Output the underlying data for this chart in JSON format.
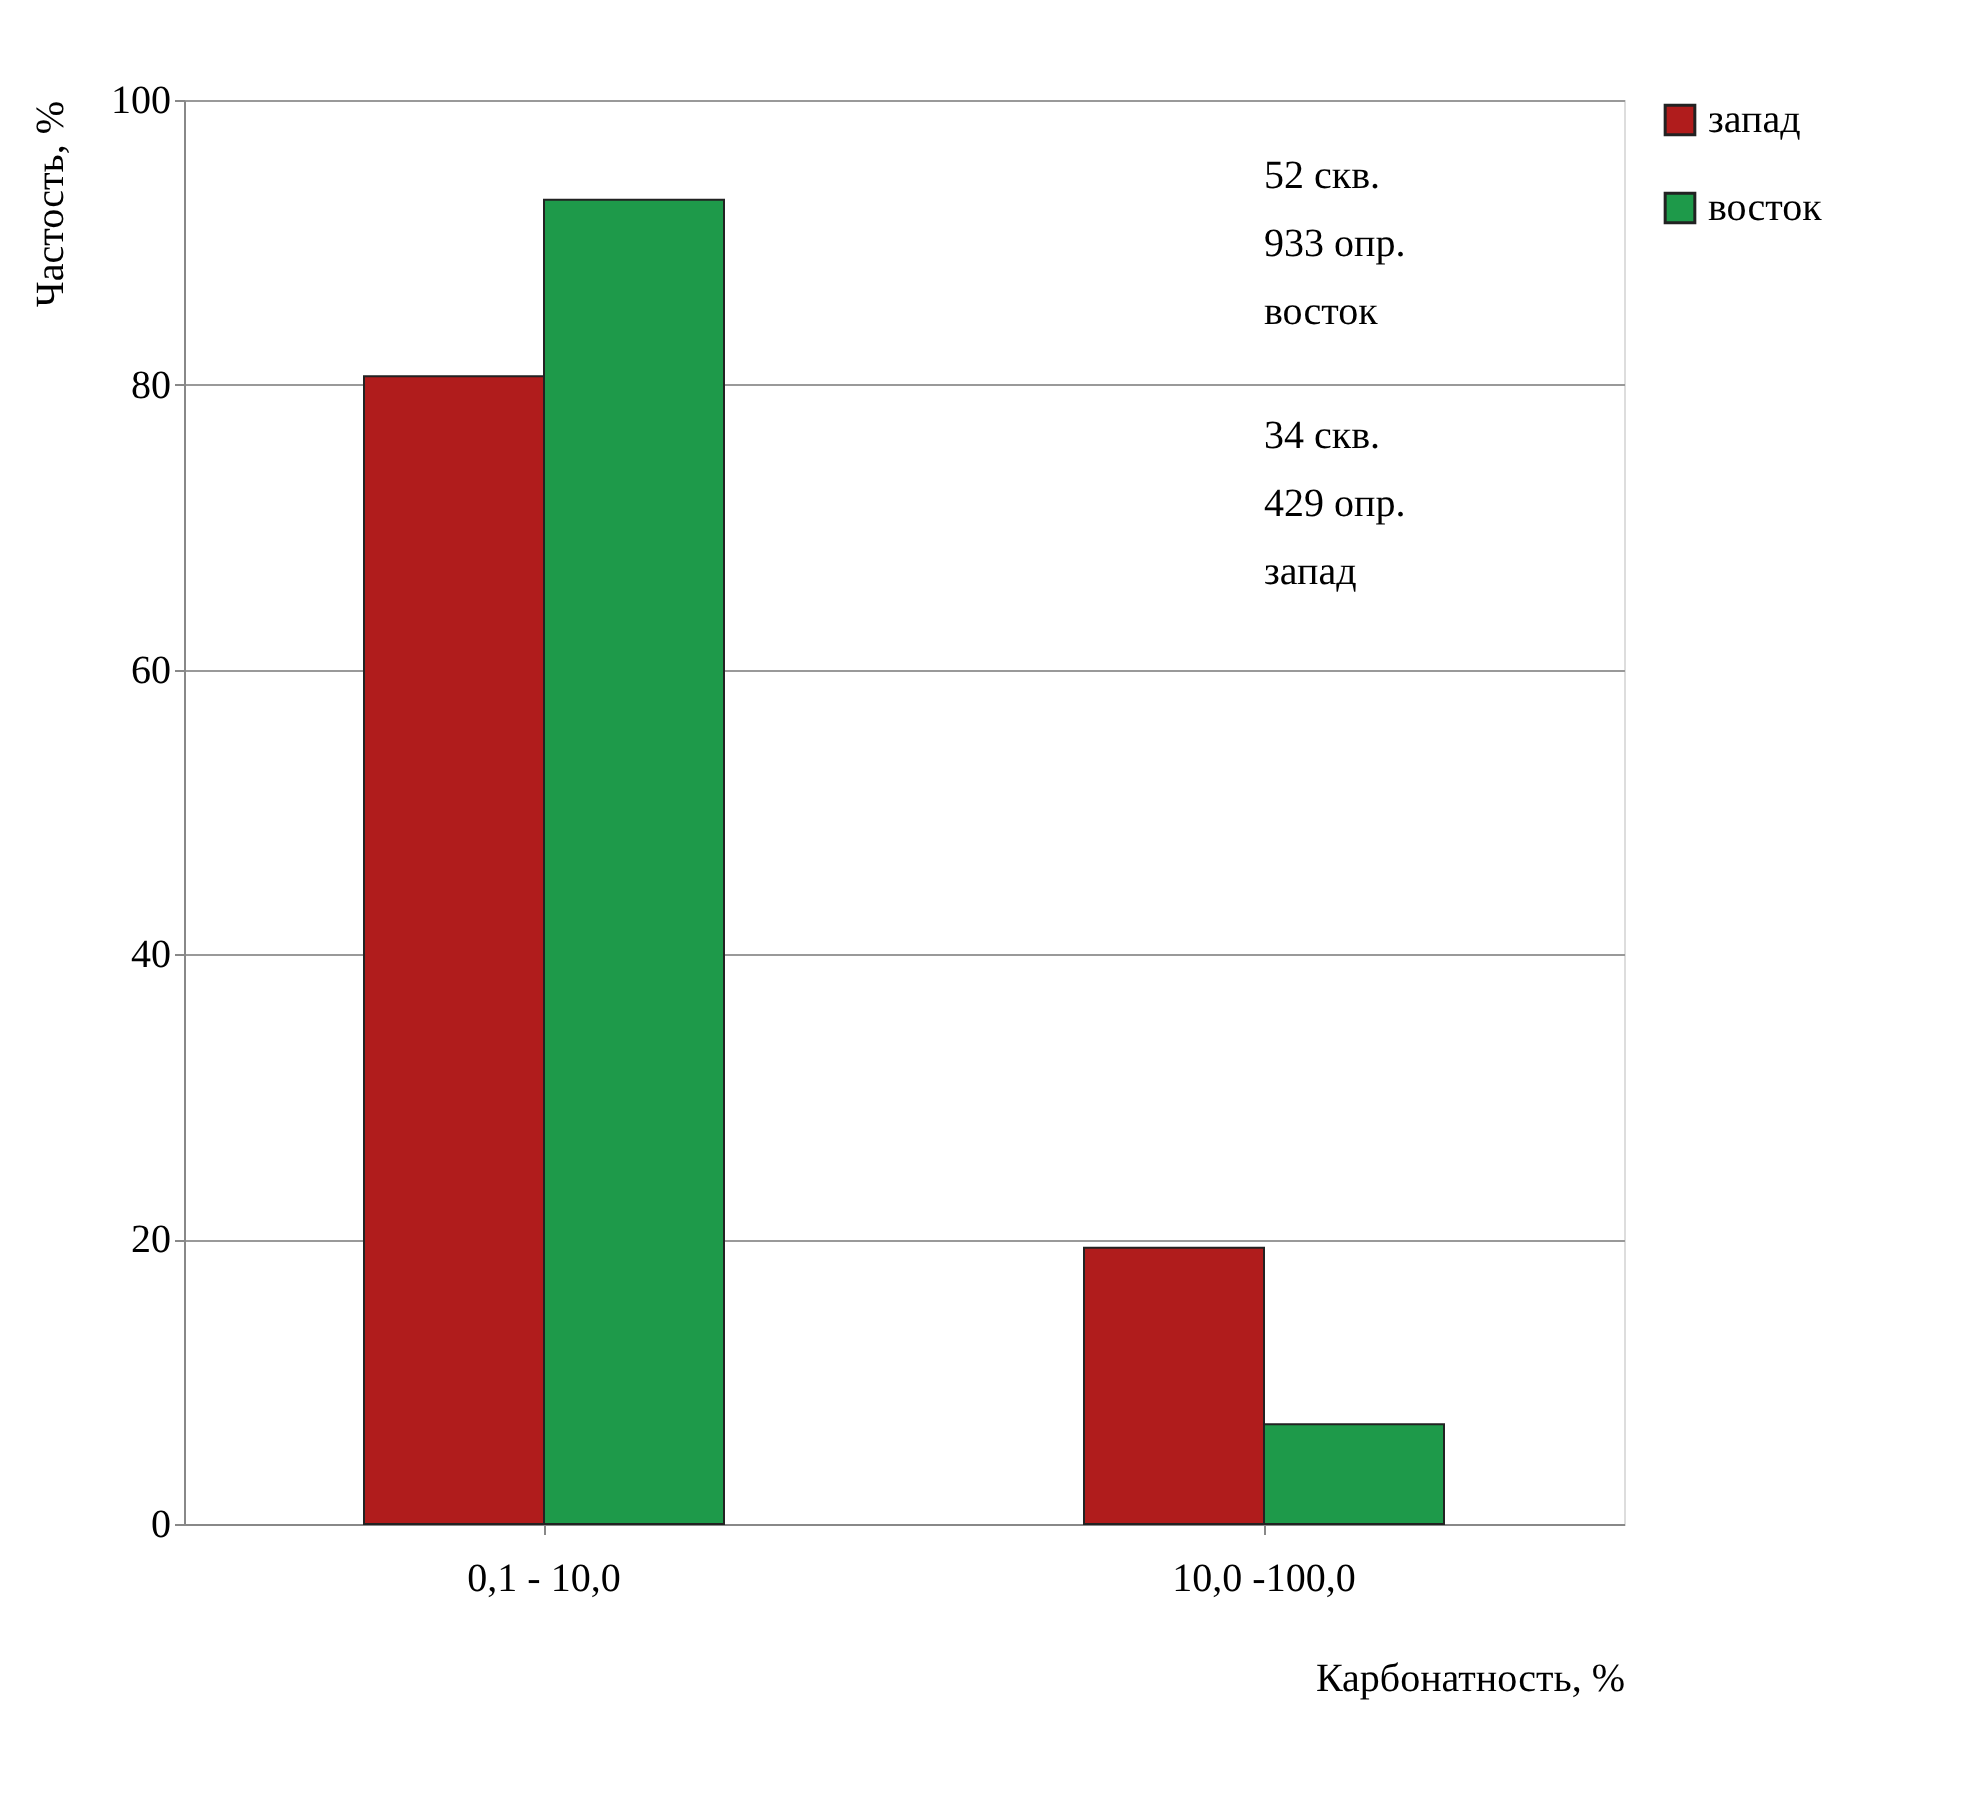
{
  "chart_data": {
    "type": "bar",
    "categories": [
      "0,1 - 10,0",
      "10,0 -100,0"
    ],
    "series": [
      {
        "name": "запад",
        "color": "#b01c1c",
        "values": [
          80.6,
          19.4
        ]
      },
      {
        "name": "восток",
        "color": "#1e9a4a",
        "values": [
          93.0,
          7.0
        ]
      }
    ],
    "xlabel": "Карбонатность, %",
    "ylabel": "Частость, %",
    "ylim": [
      0,
      100
    ],
    "yticks": [
      0,
      20,
      40,
      60,
      80,
      100
    ],
    "grid": "y",
    "legend": "right",
    "annotations": [
      "52 скв.\n933 опр.\nвосток",
      "34 скв.\n429 опр.\nзапад"
    ]
  }
}
